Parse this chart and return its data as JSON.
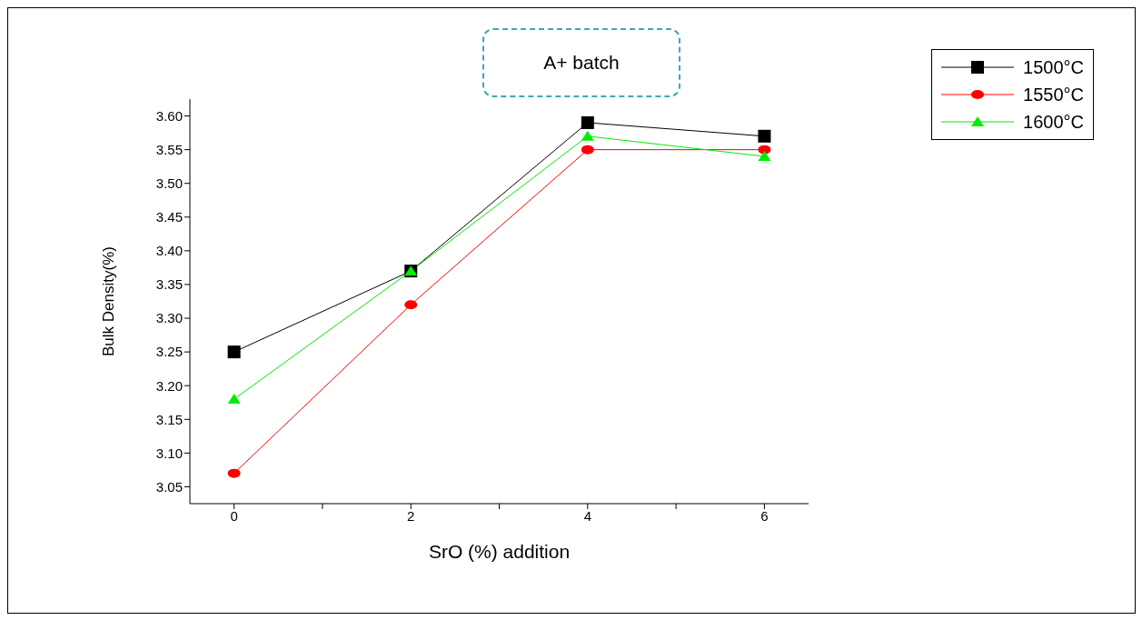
{
  "chart_data": {
    "type": "line",
    "title": "A+ batch",
    "xlabel": "SrO (%) addition",
    "ylabel": "Bulk Density(%)",
    "x": [
      0,
      2,
      4,
      6
    ],
    "series": [
      {
        "name": "1500°C",
        "color": "#000000",
        "marker": "square",
        "values": [
          3.25,
          3.37,
          3.59,
          3.57
        ]
      },
      {
        "name": "1550°C",
        "color": "#ff0000",
        "marker": "circle",
        "values": [
          3.07,
          3.32,
          3.55,
          3.55
        ]
      },
      {
        "name": "1600°C",
        "color": "#00ee00",
        "marker": "triangle",
        "values": [
          3.18,
          3.37,
          3.57,
          3.54
        ]
      }
    ],
    "xlim": [
      -0.5,
      6.5
    ],
    "xticks": [
      0,
      {
        "value": 1,
        "label": null
      },
      2,
      {
        "value": 3,
        "label": null
      },
      4,
      {
        "value": 5,
        "label": null
      },
      6
    ],
    "ylim": [
      3.025,
      3.625
    ],
    "yticks": [
      {
        "value": 3.05,
        "label": "3.05"
      },
      {
        "value": 3.1,
        "label": "3.10"
      },
      {
        "value": 3.15,
        "label": "3.15"
      },
      {
        "value": 3.2,
        "label": "3.20"
      },
      {
        "value": 3.25,
        "label": "3.25"
      },
      {
        "value": 3.3,
        "label": "3.30"
      },
      {
        "value": 3.35,
        "label": "3.35"
      },
      {
        "value": 3.4,
        "label": "3.40"
      },
      {
        "value": 3.45,
        "label": "3.45"
      },
      {
        "value": 3.5,
        "label": "3.50"
      },
      {
        "value": 3.55,
        "label": "3.55"
      },
      {
        "value": 3.6,
        "label": "3.60"
      }
    ],
    "grid": false,
    "legend": "top right",
    "line_style": "solid"
  }
}
